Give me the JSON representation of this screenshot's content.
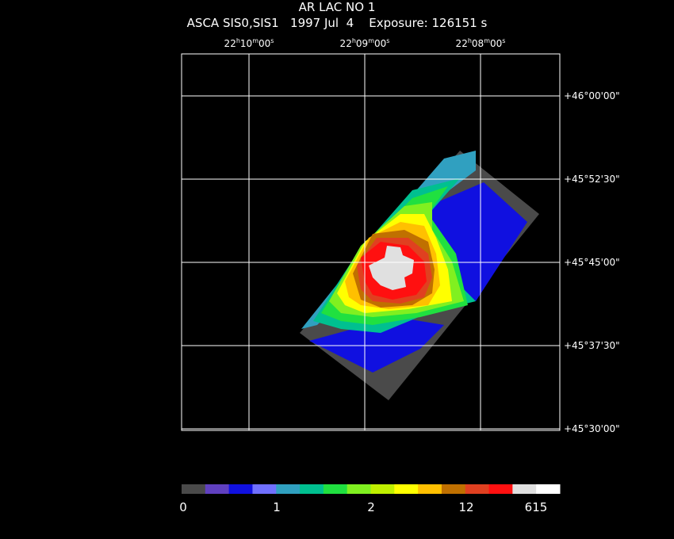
{
  "title": {
    "line1": "AR LAC NO 1",
    "line2": "ASCA SIS0,SIS1   1997 Jul  4    Exposure: 126151 s"
  },
  "ra_ticks": [
    {
      "h": "22",
      "m": "10",
      "s": "00"
    },
    {
      "h": "22",
      "m": "09",
      "s": "00"
    },
    {
      "h": "22",
      "m": "08",
      "s": "00"
    }
  ],
  "dec_ticks": [
    "+46°00'00\"",
    "+45°52'30\"",
    "+45°45'00\"",
    "+45°37'30\"",
    "+45°30'00\""
  ],
  "colorbar": {
    "colors": [
      "#4a4a4a",
      "#6040c0",
      "#1010e0",
      "#7070ff",
      "#30a0c0",
      "#00c090",
      "#20e040",
      "#80f020",
      "#c0f000",
      "#ffff00",
      "#ffc000",
      "#c07000",
      "#e04020",
      "#ff1010",
      "#e0e0e0",
      "#ffffff"
    ],
    "labels": [
      "0",
      "1",
      "2",
      "12",
      "615"
    ]
  }
}
